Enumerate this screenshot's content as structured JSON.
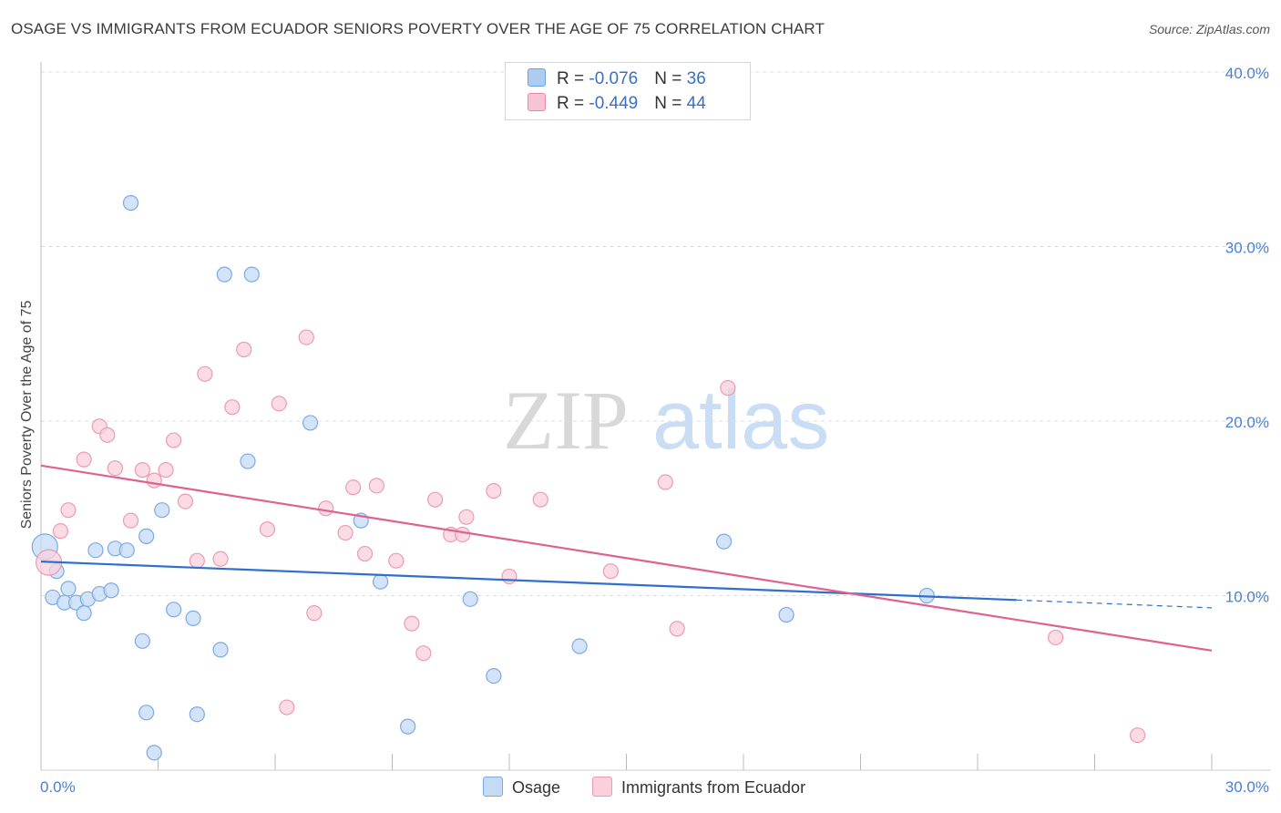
{
  "title": "OSAGE VS IMMIGRANTS FROM ECUADOR SENIORS POVERTY OVER THE AGE OF 75 CORRELATION CHART",
  "source": "Source: ZipAtlas.com",
  "watermark": {
    "zip": "ZIP",
    "atlas": "atlas"
  },
  "legend_top": [
    {
      "r_label": "R = ",
      "r_value": "-0.076",
      "n_label": "N = ",
      "n_value": "36",
      "color": "#aecbf0",
      "border": "#6f9fe0"
    },
    {
      "r_label": "R = ",
      "r_value": "-0.449",
      "n_label": "N = ",
      "n_value": "44",
      "color": "#f8c4d3",
      "border": "#e88aa6"
    }
  ],
  "legend_bottom": [
    "Osage",
    "Immigrants from Ecuador"
  ],
  "chart_data": {
    "type": "scatter",
    "title": "OSAGE VS IMMIGRANTS FROM ECUADOR SENIORS POVERTY OVER THE AGE OF 75 CORRELATION CHART",
    "xlabel": "",
    "ylabel": "Seniors Poverty Over the Age of 75",
    "xlim": [
      0,
      30
    ],
    "ylim": [
      0,
      40
    ],
    "x_tick_labels": [
      "0.0%",
      "30.0%"
    ],
    "y_ticks": [
      10,
      20,
      30,
      40
    ],
    "y_tick_labels": [
      "10.0%",
      "20.0%",
      "30.0%",
      "40.0%"
    ],
    "grid": "horizontal dashed",
    "legend_position": "top-center and bottom",
    "series": [
      {
        "name": "Osage",
        "color": "#7aaae6",
        "fill": "#c5dbf5",
        "line_color": "#2f6fcf",
        "trend": {
          "x0": 0,
          "y0": 11.95,
          "x1": 25,
          "y1": 9.75,
          "dashed_to_x": 30,
          "dashed_to_y": 9.3
        },
        "points": [
          [
            0.1,
            12.8
          ],
          [
            0.3,
            9.9
          ],
          [
            0.4,
            11.4
          ],
          [
            0.6,
            9.6
          ],
          [
            0.7,
            10.4
          ],
          [
            0.9,
            9.6
          ],
          [
            1.1,
            9.0
          ],
          [
            1.2,
            9.8
          ],
          [
            1.4,
            12.6
          ],
          [
            1.5,
            10.1
          ],
          [
            1.8,
            10.3
          ],
          [
            1.9,
            12.7
          ],
          [
            2.2,
            12.6
          ],
          [
            2.3,
            32.5
          ],
          [
            2.6,
            7.4
          ],
          [
            2.7,
            3.3
          ],
          [
            2.7,
            13.4
          ],
          [
            2.9,
            1.0
          ],
          [
            3.1,
            14.9
          ],
          [
            3.4,
            9.2
          ],
          [
            3.9,
            8.7
          ],
          [
            4.0,
            3.2
          ],
          [
            4.6,
            6.9
          ],
          [
            4.7,
            28.4
          ],
          [
            5.3,
            17.7
          ],
          [
            5.4,
            28.4
          ],
          [
            6.9,
            19.9
          ],
          [
            8.2,
            14.3
          ],
          [
            8.7,
            10.8
          ],
          [
            9.4,
            2.5
          ],
          [
            11.0,
            9.8
          ],
          [
            11.6,
            5.4
          ],
          [
            13.8,
            7.1
          ],
          [
            17.5,
            13.1
          ],
          [
            19.1,
            8.9
          ],
          [
            22.7,
            10.0
          ]
        ]
      },
      {
        "name": "Immigrants from Ecuador",
        "color": "#ec9ab4",
        "fill": "#f9d0dc",
        "line_color": "#e0608e",
        "trend": {
          "x0": 0,
          "y0": 17.45,
          "x1": 30,
          "y1": 6.85
        },
        "points": [
          [
            0.2,
            11.9
          ],
          [
            0.5,
            13.7
          ],
          [
            0.7,
            14.9
          ],
          [
            1.1,
            17.8
          ],
          [
            1.5,
            19.7
          ],
          [
            1.7,
            19.2
          ],
          [
            1.9,
            17.3
          ],
          [
            2.3,
            14.3
          ],
          [
            2.6,
            17.2
          ],
          [
            2.9,
            16.6
          ],
          [
            3.2,
            17.2
          ],
          [
            3.4,
            18.9
          ],
          [
            3.7,
            15.4
          ],
          [
            4.0,
            12.0
          ],
          [
            4.2,
            22.7
          ],
          [
            4.6,
            12.1
          ],
          [
            4.9,
            20.8
          ],
          [
            5.2,
            24.1
          ],
          [
            5.8,
            13.8
          ],
          [
            6.1,
            21.0
          ],
          [
            6.8,
            24.8
          ],
          [
            7.0,
            9.0
          ],
          [
            7.3,
            15.0
          ],
          [
            7.8,
            13.6
          ],
          [
            8.0,
            16.2
          ],
          [
            8.3,
            12.4
          ],
          [
            8.6,
            16.3
          ],
          [
            9.1,
            12.0
          ],
          [
            9.5,
            8.4
          ],
          [
            9.8,
            6.7
          ],
          [
            10.1,
            15.5
          ],
          [
            10.5,
            13.5
          ],
          [
            10.8,
            13.5
          ],
          [
            10.9,
            14.5
          ],
          [
            11.6,
            16.0
          ],
          [
            12.0,
            11.1
          ],
          [
            12.8,
            15.5
          ],
          [
            14.6,
            11.4
          ],
          [
            16.0,
            16.5
          ],
          [
            16.3,
            8.1
          ],
          [
            17.6,
            21.9
          ],
          [
            26.0,
            7.6
          ],
          [
            28.1,
            2.0
          ],
          [
            6.3,
            3.6
          ]
        ]
      }
    ]
  }
}
